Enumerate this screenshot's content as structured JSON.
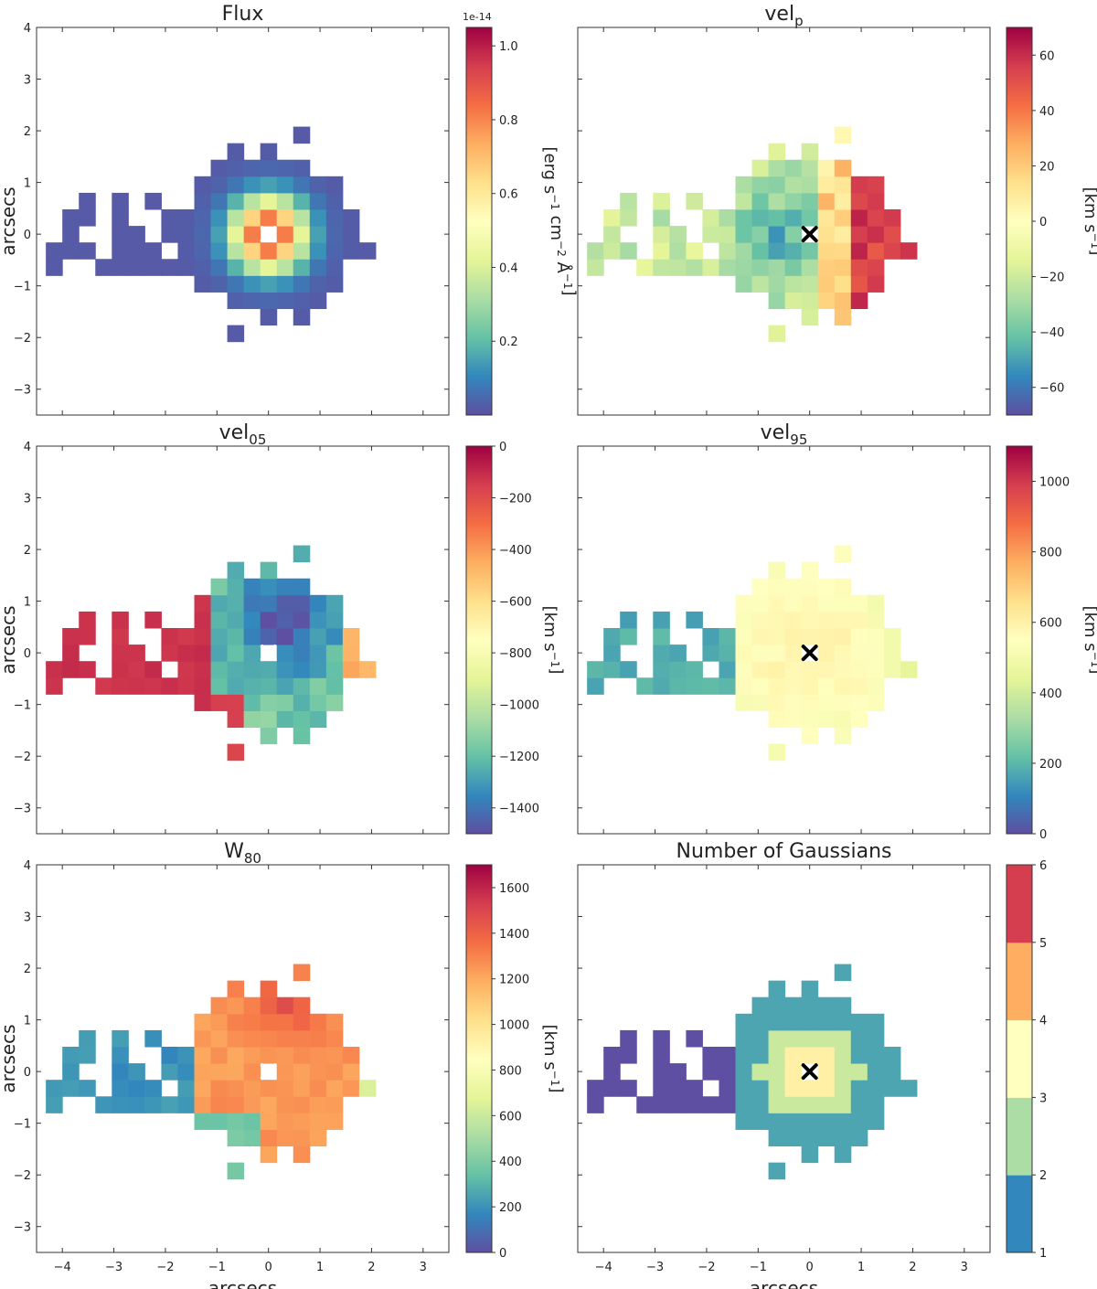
{
  "axes": {
    "xlabel": "arcsecs",
    "ylabel": "arcsecs",
    "xticks": [
      -4,
      -3,
      -2,
      -1,
      0,
      1,
      2,
      3
    ],
    "yticks": [
      4,
      3,
      2,
      1,
      0,
      -1,
      -2,
      -3
    ],
    "xlim": [
      -4.5,
      3.5
    ],
    "ylim": [
      -3.5,
      4.0
    ],
    "grid": false
  },
  "chart_data": [
    {
      "type": "heatmap",
      "title": "Flux",
      "colorbar": {
        "label": "[erg s^-1 cm^-2 Å^-1]",
        "ticks": [
          "0.2",
          "0.4",
          "0.6",
          "0.8",
          "1.0"
        ],
        "tick_values": [
          0.2,
          0.4,
          0.6,
          0.8,
          1.0
        ],
        "range": [
          0.0,
          1.05
        ],
        "offset": "1e-14",
        "colormap": "Spectral_r",
        "discrete": false
      },
      "marker": {
        "x": 0,
        "y": 0,
        "symbol": "x",
        "color": "#ffffff"
      },
      "map": "flux"
    },
    {
      "type": "heatmap",
      "title": "vel_p",
      "colorbar": {
        "label": "[km s^-1]",
        "ticks": [
          "60",
          "40",
          "20",
          "0",
          "−20",
          "−40",
          "−60"
        ],
        "tick_values": [
          60,
          40,
          20,
          0,
          -20,
          -40,
          -60
        ],
        "range": [
          -70,
          70
        ],
        "colormap": "Spectral_r",
        "discrete": false
      },
      "marker": {
        "x": 0,
        "y": 0,
        "symbol": "x",
        "color": "#000000"
      },
      "map": "velp"
    },
    {
      "type": "heatmap",
      "title": "vel_05",
      "colorbar": {
        "label": "[km s^-1]",
        "ticks": [
          "0",
          "−200",
          "−400",
          "−600",
          "−800",
          "−1000",
          "−1200",
          "−1400"
        ],
        "tick_values": [
          0,
          -200,
          -400,
          -600,
          -800,
          -1000,
          -1200,
          -1400
        ],
        "range": [
          -1500,
          0
        ],
        "colormap": "Spectral_r",
        "discrete": false
      },
      "marker": {
        "x": 0,
        "y": 0,
        "symbol": "x",
        "color": "#ffffff"
      },
      "map": "vel05"
    },
    {
      "type": "heatmap",
      "title": "vel_95",
      "colorbar": {
        "label": "[km s^-1]",
        "ticks": [
          "1000",
          "800",
          "600",
          "400",
          "200",
          "0"
        ],
        "tick_values": [
          1000,
          800,
          600,
          400,
          200,
          0
        ],
        "range": [
          0,
          1100
        ],
        "colormap": "Spectral_r",
        "discrete": false
      },
      "marker": {
        "x": 0,
        "y": 0,
        "symbol": "x",
        "color": "#000000"
      },
      "map": "vel95"
    },
    {
      "type": "heatmap",
      "title": "W_80",
      "colorbar": {
        "label": "[km s^-1]",
        "ticks": [
          "1600",
          "1400",
          "1200",
          "1000",
          "800",
          "600",
          "400",
          "200",
          "0"
        ],
        "tick_values": [
          1600,
          1400,
          1200,
          1000,
          800,
          600,
          400,
          200,
          0
        ],
        "range": [
          0,
          1700
        ],
        "colormap": "Spectral_r",
        "discrete": false
      },
      "marker": {
        "x": 0,
        "y": 0,
        "symbol": "x",
        "color": "#ffffff"
      },
      "map": "w80"
    },
    {
      "type": "heatmap",
      "title": "Number of Gaussians",
      "colorbar": {
        "label": "",
        "ticks": [
          "6",
          "5",
          "4",
          "3",
          "2",
          "1"
        ],
        "tick_values": [
          6,
          5,
          4,
          3,
          2,
          1
        ],
        "range": [
          1,
          6
        ],
        "colormap": "Spectral_r",
        "discrete": true,
        "levels": 5
      },
      "marker": {
        "x": 0,
        "y": 0,
        "symbol": "x",
        "color": "#000000"
      },
      "map": "ngauss"
    }
  ]
}
